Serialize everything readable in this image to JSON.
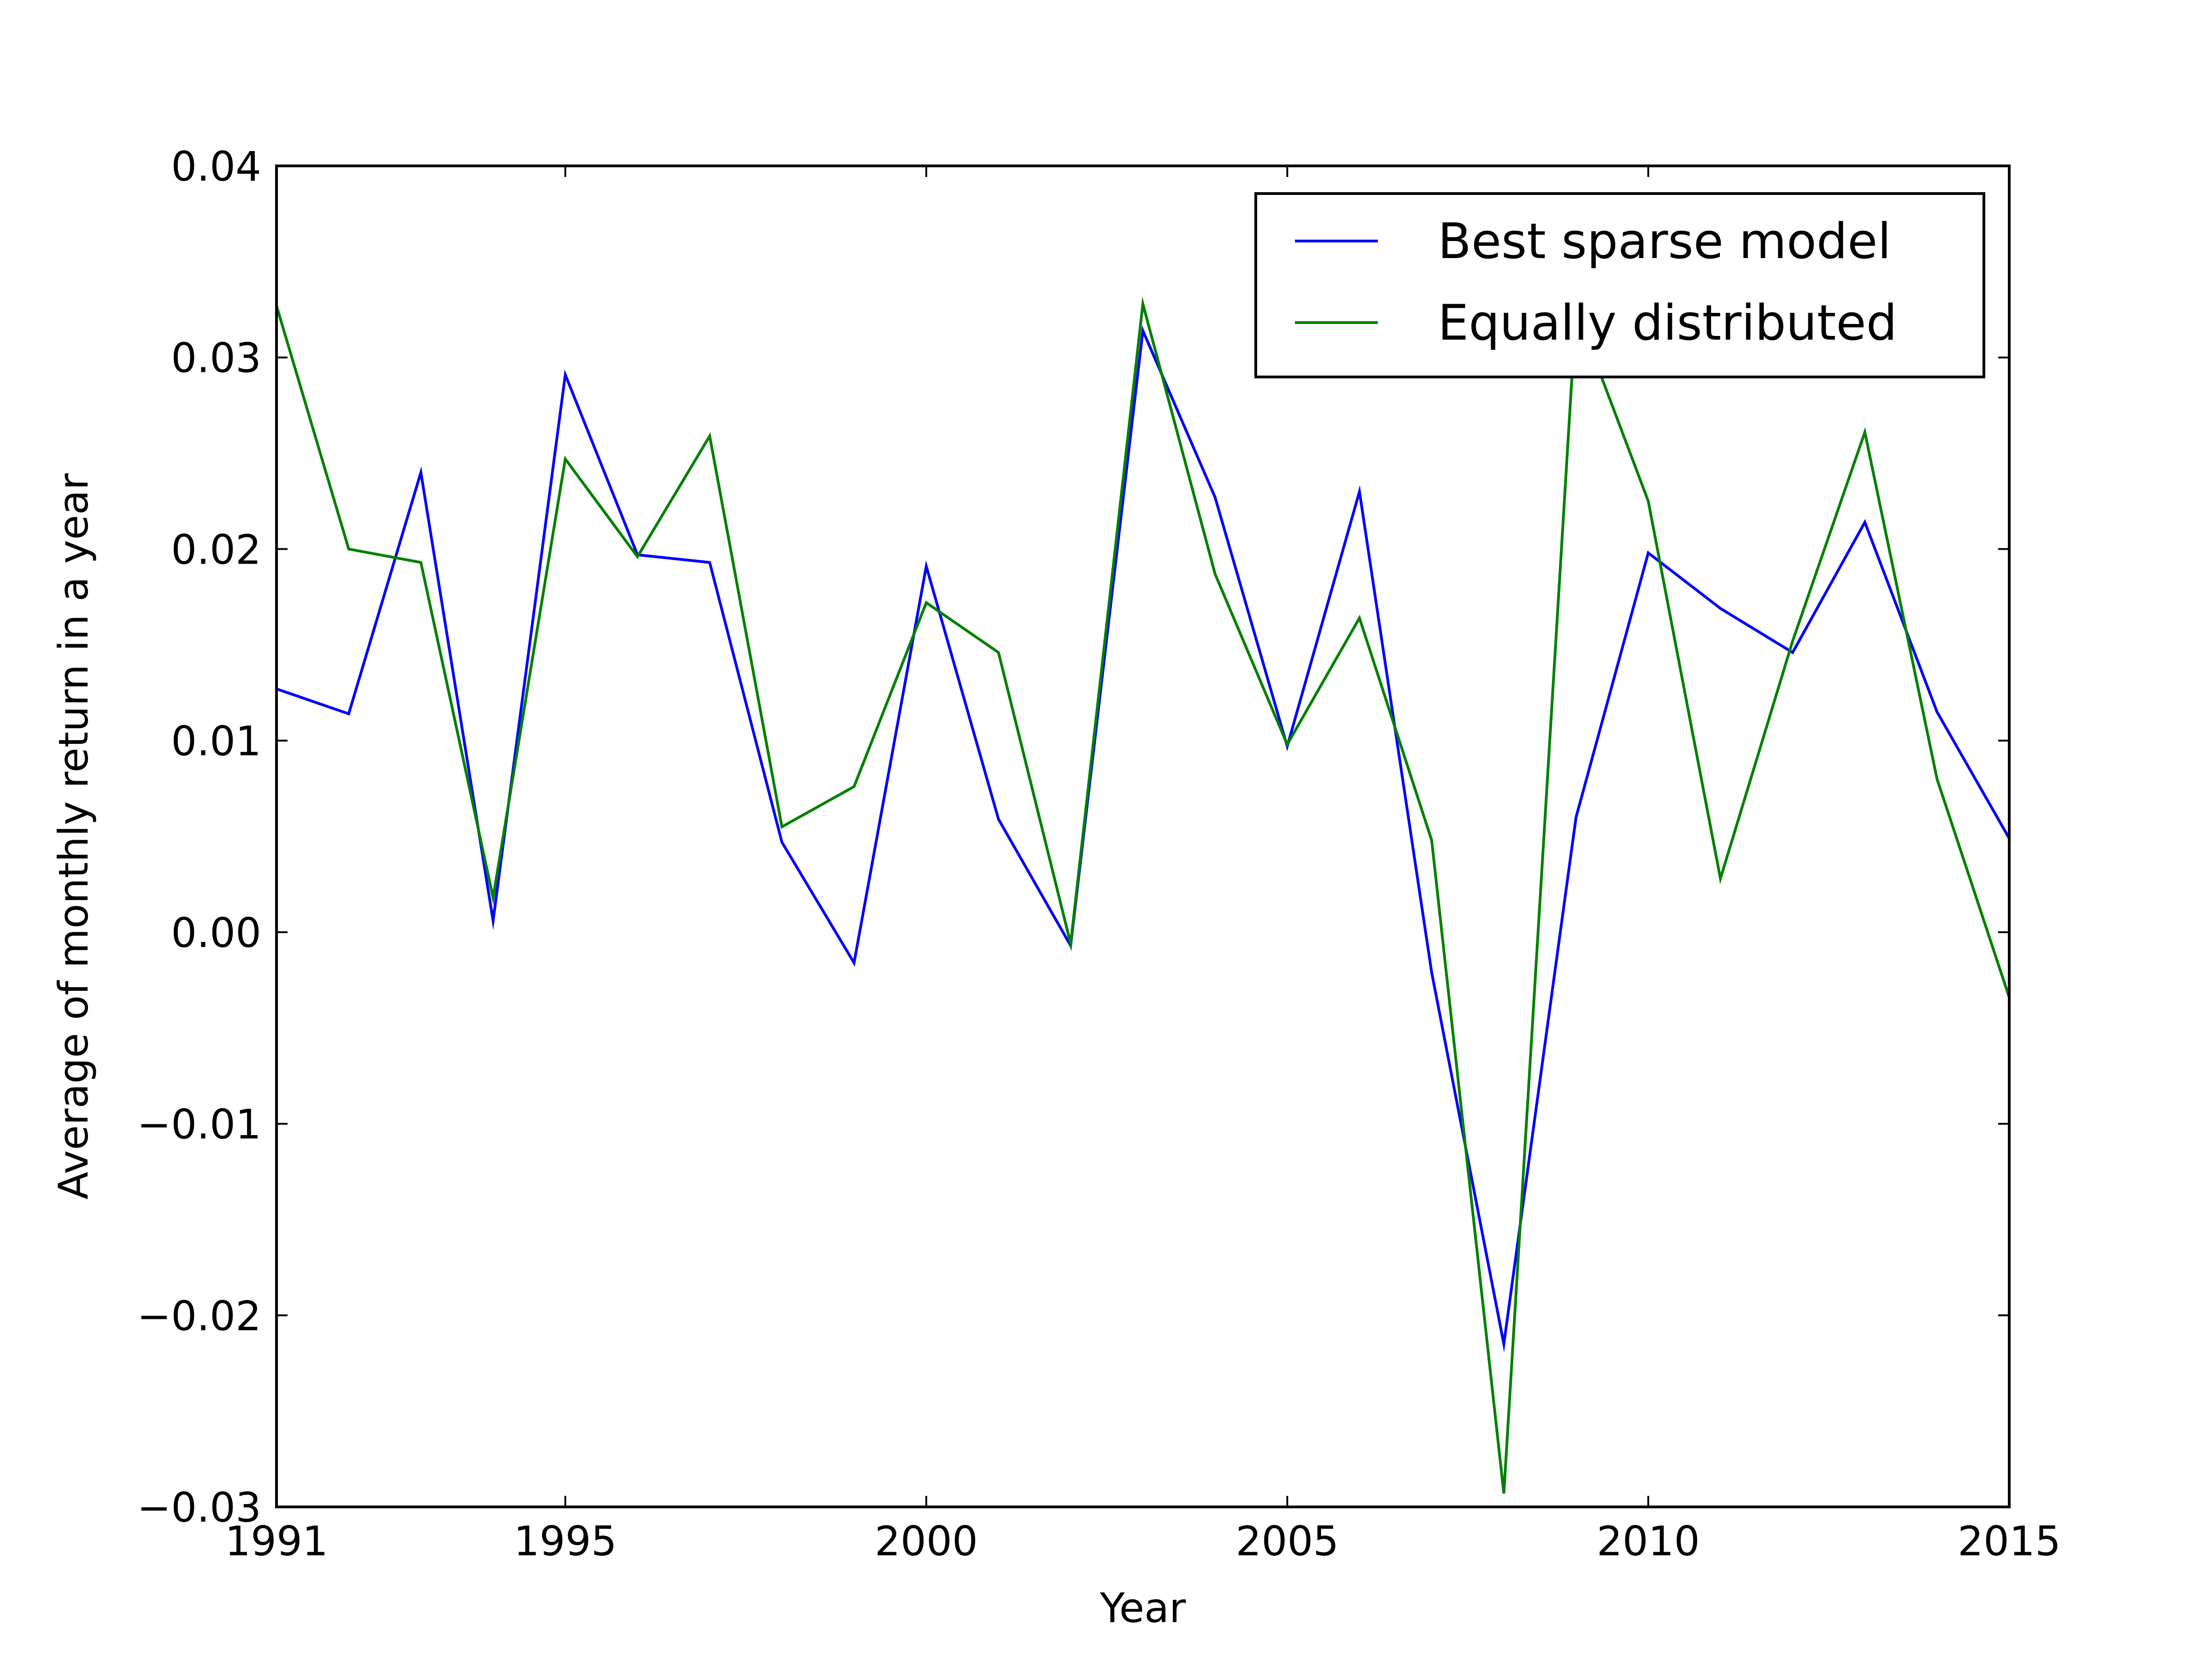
{
  "chart_data": {
    "type": "line",
    "title": "",
    "xlabel": "Year",
    "ylabel": "Average of monthly return in a year",
    "xlim": [
      1991,
      2015
    ],
    "ylim": [
      -0.03,
      0.04
    ],
    "grid": false,
    "legend_position": "top-right",
    "x_ticks": [
      1991,
      1995,
      2000,
      2005,
      2010,
      2015
    ],
    "x_tick_labels": [
      "1991",
      "1995",
      "2000",
      "2005",
      "2010",
      "2015"
    ],
    "y_ticks": [
      -0.03,
      -0.02,
      -0.01,
      0.0,
      0.01,
      0.02,
      0.03,
      0.04
    ],
    "y_tick_labels": [
      "−0.03",
      "−0.02",
      "−0.01",
      "0.00",
      "0.01",
      "0.02",
      "0.03",
      "0.04"
    ],
    "x": [
      1991,
      1992,
      1993,
      1994,
      1995,
      1996,
      1997,
      1998,
      1999,
      2000,
      2001,
      2002,
      2003,
      2004,
      2005,
      2006,
      2007,
      2008,
      2009,
      2010,
      2011,
      2012,
      2013,
      2014,
      2015
    ],
    "series": [
      {
        "name": "Best sparse model",
        "color": "#0000ff",
        "values": [
          0.0127,
          0.0114,
          0.024,
          0.0006,
          0.0291,
          0.0197,
          0.0193,
          0.0047,
          -0.0016,
          0.0191,
          0.0059,
          -0.0007,
          0.0314,
          0.0227,
          0.0097,
          0.023,
          -0.0021,
          -0.0215,
          0.006,
          0.0198,
          0.0169,
          0.0146,
          0.0214,
          0.0115,
          0.0049
        ]
      },
      {
        "name": "Equally distributed",
        "color": "#008000",
        "values": [
          0.0327,
          0.02,
          0.0193,
          0.0018,
          0.0247,
          0.0196,
          0.0259,
          0.0055,
          0.0076,
          0.0172,
          0.0146,
          -0.0006,
          0.0328,
          0.0187,
          0.0098,
          0.0164,
          0.0048,
          -0.0293,
          0.0325,
          0.0225,
          0.0028,
          0.0152,
          0.0261,
          0.008,
          -0.0034
        ]
      }
    ]
  }
}
